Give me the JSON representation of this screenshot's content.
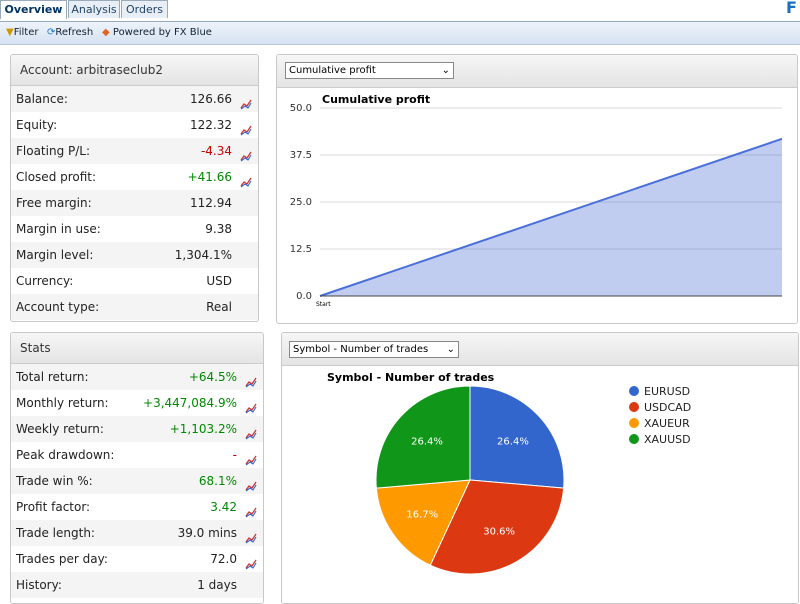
{
  "tabs": [
    "Overview",
    "Analysis",
    "Orders"
  ],
  "brand": "F",
  "toolbar": [
    "Filter",
    "Refresh",
    "Powered by FX Blue"
  ],
  "account": {
    "title": "Account: arbitraseclub2",
    "rows": [
      {
        "label": "Balance:",
        "value": "126.66",
        "chart_icon": true
      },
      {
        "label": "Equity:",
        "value": "122.32",
        "chart_icon": true
      },
      {
        "label": "Floating P/L:",
        "value": "-4.34",
        "color": "#cc0000",
        "chart_icon": true
      },
      {
        "label": "Closed profit:",
        "value": "+41.66",
        "color": "#008800",
        "chart_icon": true
      },
      {
        "label": "Free margin:",
        "value": "112.94"
      },
      {
        "label": "Margin in use:",
        "value": "9.38"
      },
      {
        "label": "Margin level:",
        "value": "1,304.1%"
      },
      {
        "label": "Currency:",
        "value": "USD"
      },
      {
        "label": "Account type:",
        "value": "Real"
      }
    ]
  },
  "stats": {
    "title": "Stats",
    "rows": [
      {
        "label": "Total return:",
        "value": "+64.5%",
        "color": "#008800",
        "chart_icon": true
      },
      {
        "label": "Monthly return:",
        "value": "+3,447,084.9%",
        "color": "#008800",
        "chart_icon": true
      },
      {
        "label": "Weekly return:",
        "value": "+1,103.2%",
        "color": "#008800",
        "chart_icon": true
      },
      {
        "label": "Peak drawdown:",
        "value": "-",
        "color": "#cc0000",
        "chart_icon": true
      },
      {
        "label": "Trade win %:",
        "value": "68.1%",
        "color": "#008800",
        "chart_icon": true
      },
      {
        "label": "Profit factor:",
        "value": "3.42",
        "color": "#008800",
        "chart_icon": true
      },
      {
        "label": "Trade length:",
        "value": "39.0 mins",
        "chart_icon": true
      },
      {
        "label": "Trades per day:",
        "value": "72.0",
        "chart_icon": true
      },
      {
        "label": "History:",
        "value": "1 days"
      }
    ]
  },
  "selectors": [
    "Cumulative profit",
    "Symbol - Number of trades"
  ],
  "chart_data": [
    {
      "type": "area",
      "title": "Cumulative profit",
      "categories": [
        "Start",
        null
      ],
      "values": [
        0,
        41.8
      ],
      "color": "#4a6fd8",
      "ylim": [
        0,
        50
      ],
      "yticks": [
        {
          "value": 0,
          "label": "0.0"
        },
        12.5,
        {
          "value": 25,
          "label": "25.0"
        },
        37.5,
        {
          "value": 50,
          "label": "50.0"
        }
      ],
      "grid": true
    },
    {
      "type": "pie",
      "title": "Symbol - Number of trades",
      "categories": [
        "EURUSD",
        "USDCAD",
        "XAUEUR",
        "XAUUSD"
      ],
      "values": [
        26.4,
        30.6,
        16.7,
        26.4
      ],
      "value_labels": [
        "26.4%",
        "30.6%",
        "16.7%",
        "26.4%"
      ],
      "colors": [
        "#3366cc",
        "#dc3912",
        "#ff9900",
        "#109618"
      ],
      "legend": "right"
    }
  ]
}
